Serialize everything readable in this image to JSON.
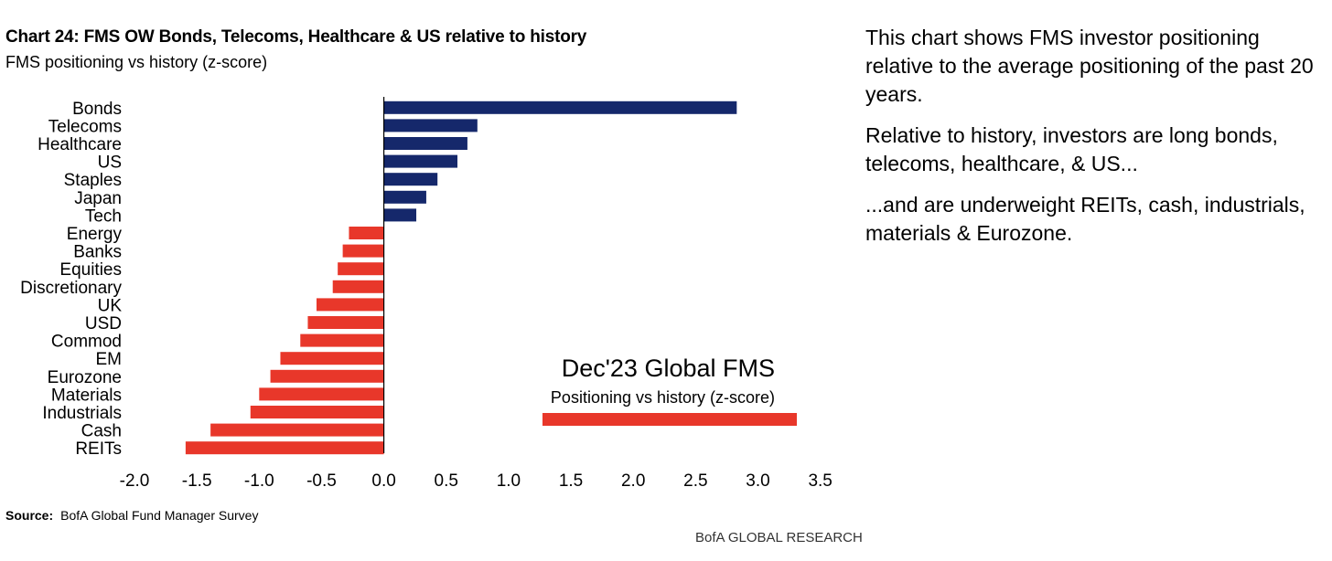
{
  "header": {
    "title": "Chart 24: FMS OW Bonds, Telecoms, Healthcare & US relative to history",
    "subtitle": "FMS positioning vs history (z-score)"
  },
  "footer": {
    "source_label": "Source:",
    "source_text": "BofA Global Fund Manager Survey",
    "brand": "BofA GLOBAL RESEARCH"
  },
  "commentary": {
    "p1": "This chart shows FMS investor positioning relative to the average positioning of the past 20 years.",
    "p2": "Relative to history, investors are long bonds, telecoms, healthcare, & US...",
    "p3": "...and are underweight REITs, cash, industrials, materials & Eurozone."
  },
  "colors": {
    "positive": "#15286b",
    "negative": "#e8372a",
    "axis": "#000000"
  },
  "chart_data": {
    "type": "bar",
    "orientation": "horizontal",
    "title": "Chart 24: FMS OW Bonds, Telecoms, Healthcare & US relative to history",
    "ylabel": "FMS positioning vs history (z-score)",
    "categories": [
      "Bonds",
      "Telecoms",
      "Healthcare",
      "US",
      "Staples",
      "Japan",
      "Tech",
      "Energy",
      "Banks",
      "Equities",
      "Discretionary",
      "UK",
      "USD",
      "Commod",
      "EM",
      "Eurozone",
      "Materials",
      "Industrials",
      "Cash",
      "REITs"
    ],
    "values": [
      2.83,
      0.75,
      0.67,
      0.59,
      0.43,
      0.34,
      0.26,
      -0.28,
      -0.33,
      -0.37,
      -0.41,
      -0.54,
      -0.61,
      -0.67,
      -0.83,
      -0.91,
      -1.0,
      -1.07,
      -1.39,
      -1.59
    ],
    "xlim": [
      -2.0,
      3.5
    ],
    "xticks": [
      "-2.0",
      "-1.5",
      "-1.0",
      "-0.5",
      "0.0",
      "0.5",
      "1.0",
      "1.5",
      "2.0",
      "2.5",
      "3.0",
      "3.5"
    ],
    "legend": {
      "title": "Dec'23 Global FMS",
      "label": "Positioning vs history (z-score)",
      "placement": "bottom-right"
    }
  }
}
